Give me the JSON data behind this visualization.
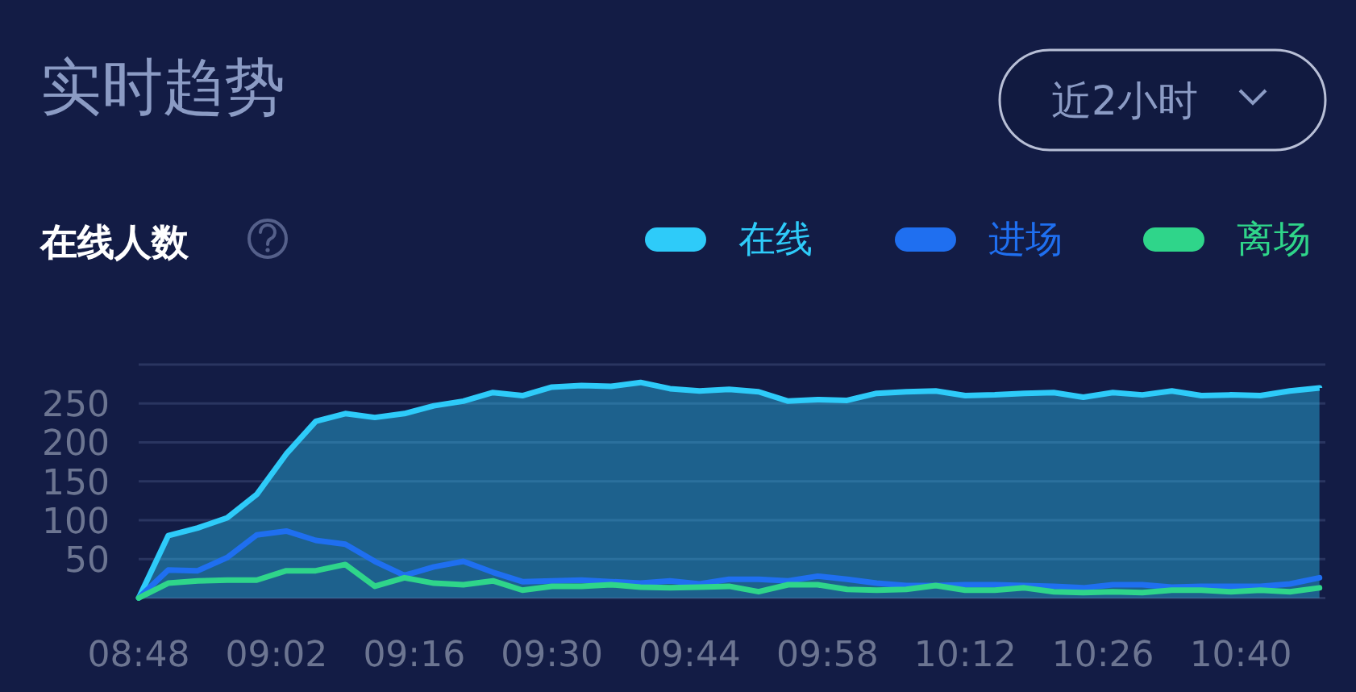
{
  "chart_data": {
    "type": "area",
    "title": "实时趋势",
    "subtitle": "在线人数",
    "annotations": [
      "近2小时"
    ],
    "x": [
      8.8,
      8.85,
      8.9,
      8.95,
      9.0,
      9.05,
      9.1,
      9.15,
      9.2,
      9.25,
      9.3,
      9.35,
      9.4,
      9.45,
      9.5,
      9.55,
      9.6,
      9.65,
      9.7,
      9.75,
      9.8,
      9.85,
      9.9,
      9.95,
      10.0,
      10.05,
      10.1,
      10.15,
      10.2,
      10.25,
      10.3,
      10.35,
      10.4,
      10.45,
      10.5,
      10.55,
      10.6,
      10.65,
      10.7,
      10.75,
      10.8
    ],
    "series": [
      {
        "name": "在线",
        "color": "#2ecbf9",
        "values": [
          0,
          80,
          90,
          103,
          133,
          185,
          227,
          237,
          232,
          237,
          247,
          253,
          264,
          260,
          271,
          273,
          272,
          277,
          269,
          266,
          268,
          265,
          253,
          255,
          254,
          263,
          265,
          266,
          260,
          261,
          263,
          264,
          258,
          264,
          261,
          266,
          260,
          261,
          260,
          266,
          270
        ]
      },
      {
        "name": "进场",
        "type": "line",
        "color": "#1f6ff0",
        "values": [
          0,
          36,
          35,
          52,
          81,
          86,
          74,
          69,
          47,
          29,
          40,
          47,
          33,
          21,
          22,
          23,
          21,
          19,
          22,
          18,
          24,
          24,
          22,
          28,
          24,
          19,
          16,
          16,
          17,
          17,
          16,
          15,
          13,
          17,
          17,
          14,
          15,
          15,
          15,
          18,
          26
        ]
      },
      {
        "name": "离场",
        "type": "line",
        "color": "#2fd58a",
        "values": [
          0,
          19,
          22,
          23,
          23,
          35,
          35,
          43,
          15,
          26,
          19,
          17,
          22,
          10,
          15,
          15,
          17,
          14,
          13,
          14,
          15,
          8,
          17,
          17,
          11,
          10,
          11,
          16,
          10,
          10,
          13,
          8,
          7,
          8,
          7,
          10,
          10,
          8,
          10,
          8,
          13
        ]
      }
    ],
    "xlim": [
      8.8,
      10.81
    ],
    "xticks": [
      {
        "value": 8.8,
        "label": "08:48"
      },
      {
        "value": 9.0333,
        "label": "09:02"
      },
      {
        "value": 9.2667,
        "label": "09:16"
      },
      {
        "value": 9.5,
        "label": "09:30"
      },
      {
        "value": 9.7333,
        "label": "09:44"
      },
      {
        "value": 9.9667,
        "label": "09:58"
      },
      {
        "value": 10.2,
        "label": "10:12"
      },
      {
        "value": 10.4333,
        "label": "10:26"
      },
      {
        "value": 10.6667,
        "label": "10:40"
      }
    ],
    "ylim": [
      0,
      300
    ],
    "yticks": [
      {
        "value": 0,
        "label": null
      },
      50,
      100,
      150,
      200,
      250,
      {
        "value": 300,
        "label": null
      }
    ],
    "grid": "y",
    "legend": "top right"
  }
}
